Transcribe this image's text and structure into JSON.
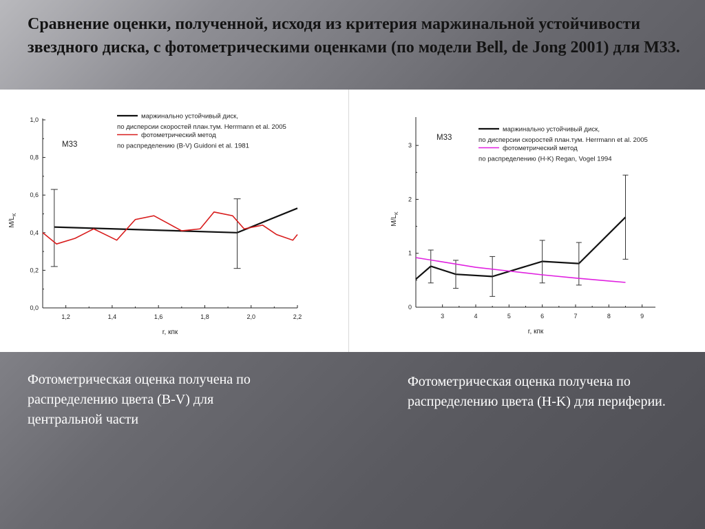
{
  "slide": {
    "title": "Сравнение оценки, полученной, исходя из критерия маржинальной устойчивости звездного диска, с фотометрическими оценками  (по модели Bell, de Jong 2001) для М33.",
    "caption_left": "Фотометрическая оценка получена по распределению цвета (B-V) для центральной части",
    "caption_right": "Фотометрическая оценка получена по распределению цвета (H-K) для периферии."
  },
  "chart_data": [
    {
      "type": "line",
      "galaxy_label": "M33",
      "xlabel": "r, кпк",
      "ylabel_main": "M/L",
      "ylabel_sub": "K",
      "xlim": [
        1.1,
        2.2
      ],
      "ylim": [
        0.0,
        1.0
      ],
      "x_ticks": [
        1.2,
        1.4,
        1.6,
        1.8,
        2.0,
        2.2
      ],
      "x_tick_labels": [
        "1,2",
        "1,4",
        "1,6",
        "1,8",
        "2,0",
        "2,2"
      ],
      "y_ticks": [
        0.0,
        0.2,
        0.4,
        0.6,
        0.8,
        1.0
      ],
      "y_tick_labels": [
        "0,0",
        "0,2",
        "0,4",
        "0,6",
        "0,8",
        "1,0"
      ],
      "legend_placement": "top-right",
      "series": [
        {
          "name": "маржинально устойчивый диск,",
          "name_line2": "по дисперсии скоростей план.тум. Herrmann et al. 2005",
          "color": "#111111",
          "x": [
            1.15,
            1.94,
            2.2
          ],
          "y": [
            0.43,
            0.4,
            0.53
          ],
          "error_bars": [
            {
              "x": 1.15,
              "low": 0.22,
              "high": 0.63
            },
            {
              "x": 1.94,
              "low": 0.21,
              "high": 0.58
            }
          ]
        },
        {
          "name": "фотометрический метод",
          "name_line2": "по распределению (B-V)  Guidoni et al. 1981",
          "color": "#d81c1c",
          "x": [
            1.1,
            1.16,
            1.24,
            1.32,
            1.42,
            1.5,
            1.58,
            1.64,
            1.7,
            1.78,
            1.84,
            1.92,
            1.97,
            2.05,
            2.11,
            2.18,
            2.2
          ],
          "y": [
            0.4,
            0.34,
            0.37,
            0.42,
            0.36,
            0.47,
            0.49,
            0.45,
            0.41,
            0.42,
            0.51,
            0.49,
            0.42,
            0.44,
            0.39,
            0.36,
            0.39
          ]
        }
      ]
    },
    {
      "type": "line",
      "galaxy_label": "M33",
      "xlabel": "r, кпк",
      "ylabel_main": "M/L",
      "ylabel_sub": "K",
      "xlim": [
        2.2,
        9.4
      ],
      "ylim": [
        0,
        3.5
      ],
      "x_ticks": [
        3,
        4,
        5,
        6,
        7,
        8,
        9
      ],
      "x_tick_labels": [
        "3",
        "4",
        "5",
        "6",
        "7",
        "8",
        "9"
      ],
      "y_ticks": [
        0,
        1,
        2,
        3
      ],
      "y_tick_labels": [
        "0",
        "1",
        "2",
        "3"
      ],
      "legend_placement": "top-right",
      "series": [
        {
          "name": "маржинально устойчивый диск,",
          "name_line2": "по дисперсии скоростей план.тум. Herrmann et al. 2005",
          "color": "#111111",
          "x": [
            2.2,
            2.65,
            3.4,
            4.5,
            6.0,
            7.1,
            8.5
          ],
          "y": [
            0.52,
            0.76,
            0.61,
            0.57,
            0.85,
            0.81,
            1.67
          ],
          "error_bars": [
            {
              "x": 2.65,
              "low": 0.45,
              "high": 1.06
            },
            {
              "x": 3.4,
              "low": 0.35,
              "high": 0.87
            },
            {
              "x": 4.5,
              "low": 0.2,
              "high": 0.94
            },
            {
              "x": 6.0,
              "low": 0.45,
              "high": 1.24
            },
            {
              "x": 7.1,
              "low": 0.41,
              "high": 1.2
            },
            {
              "x": 8.5,
              "low": 0.89,
              "high": 2.45
            }
          ]
        },
        {
          "name": "фотометрический метод",
          "name_line2": "по распределению (H-K)  Regan, Vogel 1994",
          "color": "#e020e0",
          "x": [
            2.2,
            3.0,
            4.0,
            5.0,
            6.0,
            7.0,
            8.5
          ],
          "y": [
            0.92,
            0.84,
            0.74,
            0.67,
            0.6,
            0.54,
            0.46
          ]
        }
      ]
    }
  ]
}
